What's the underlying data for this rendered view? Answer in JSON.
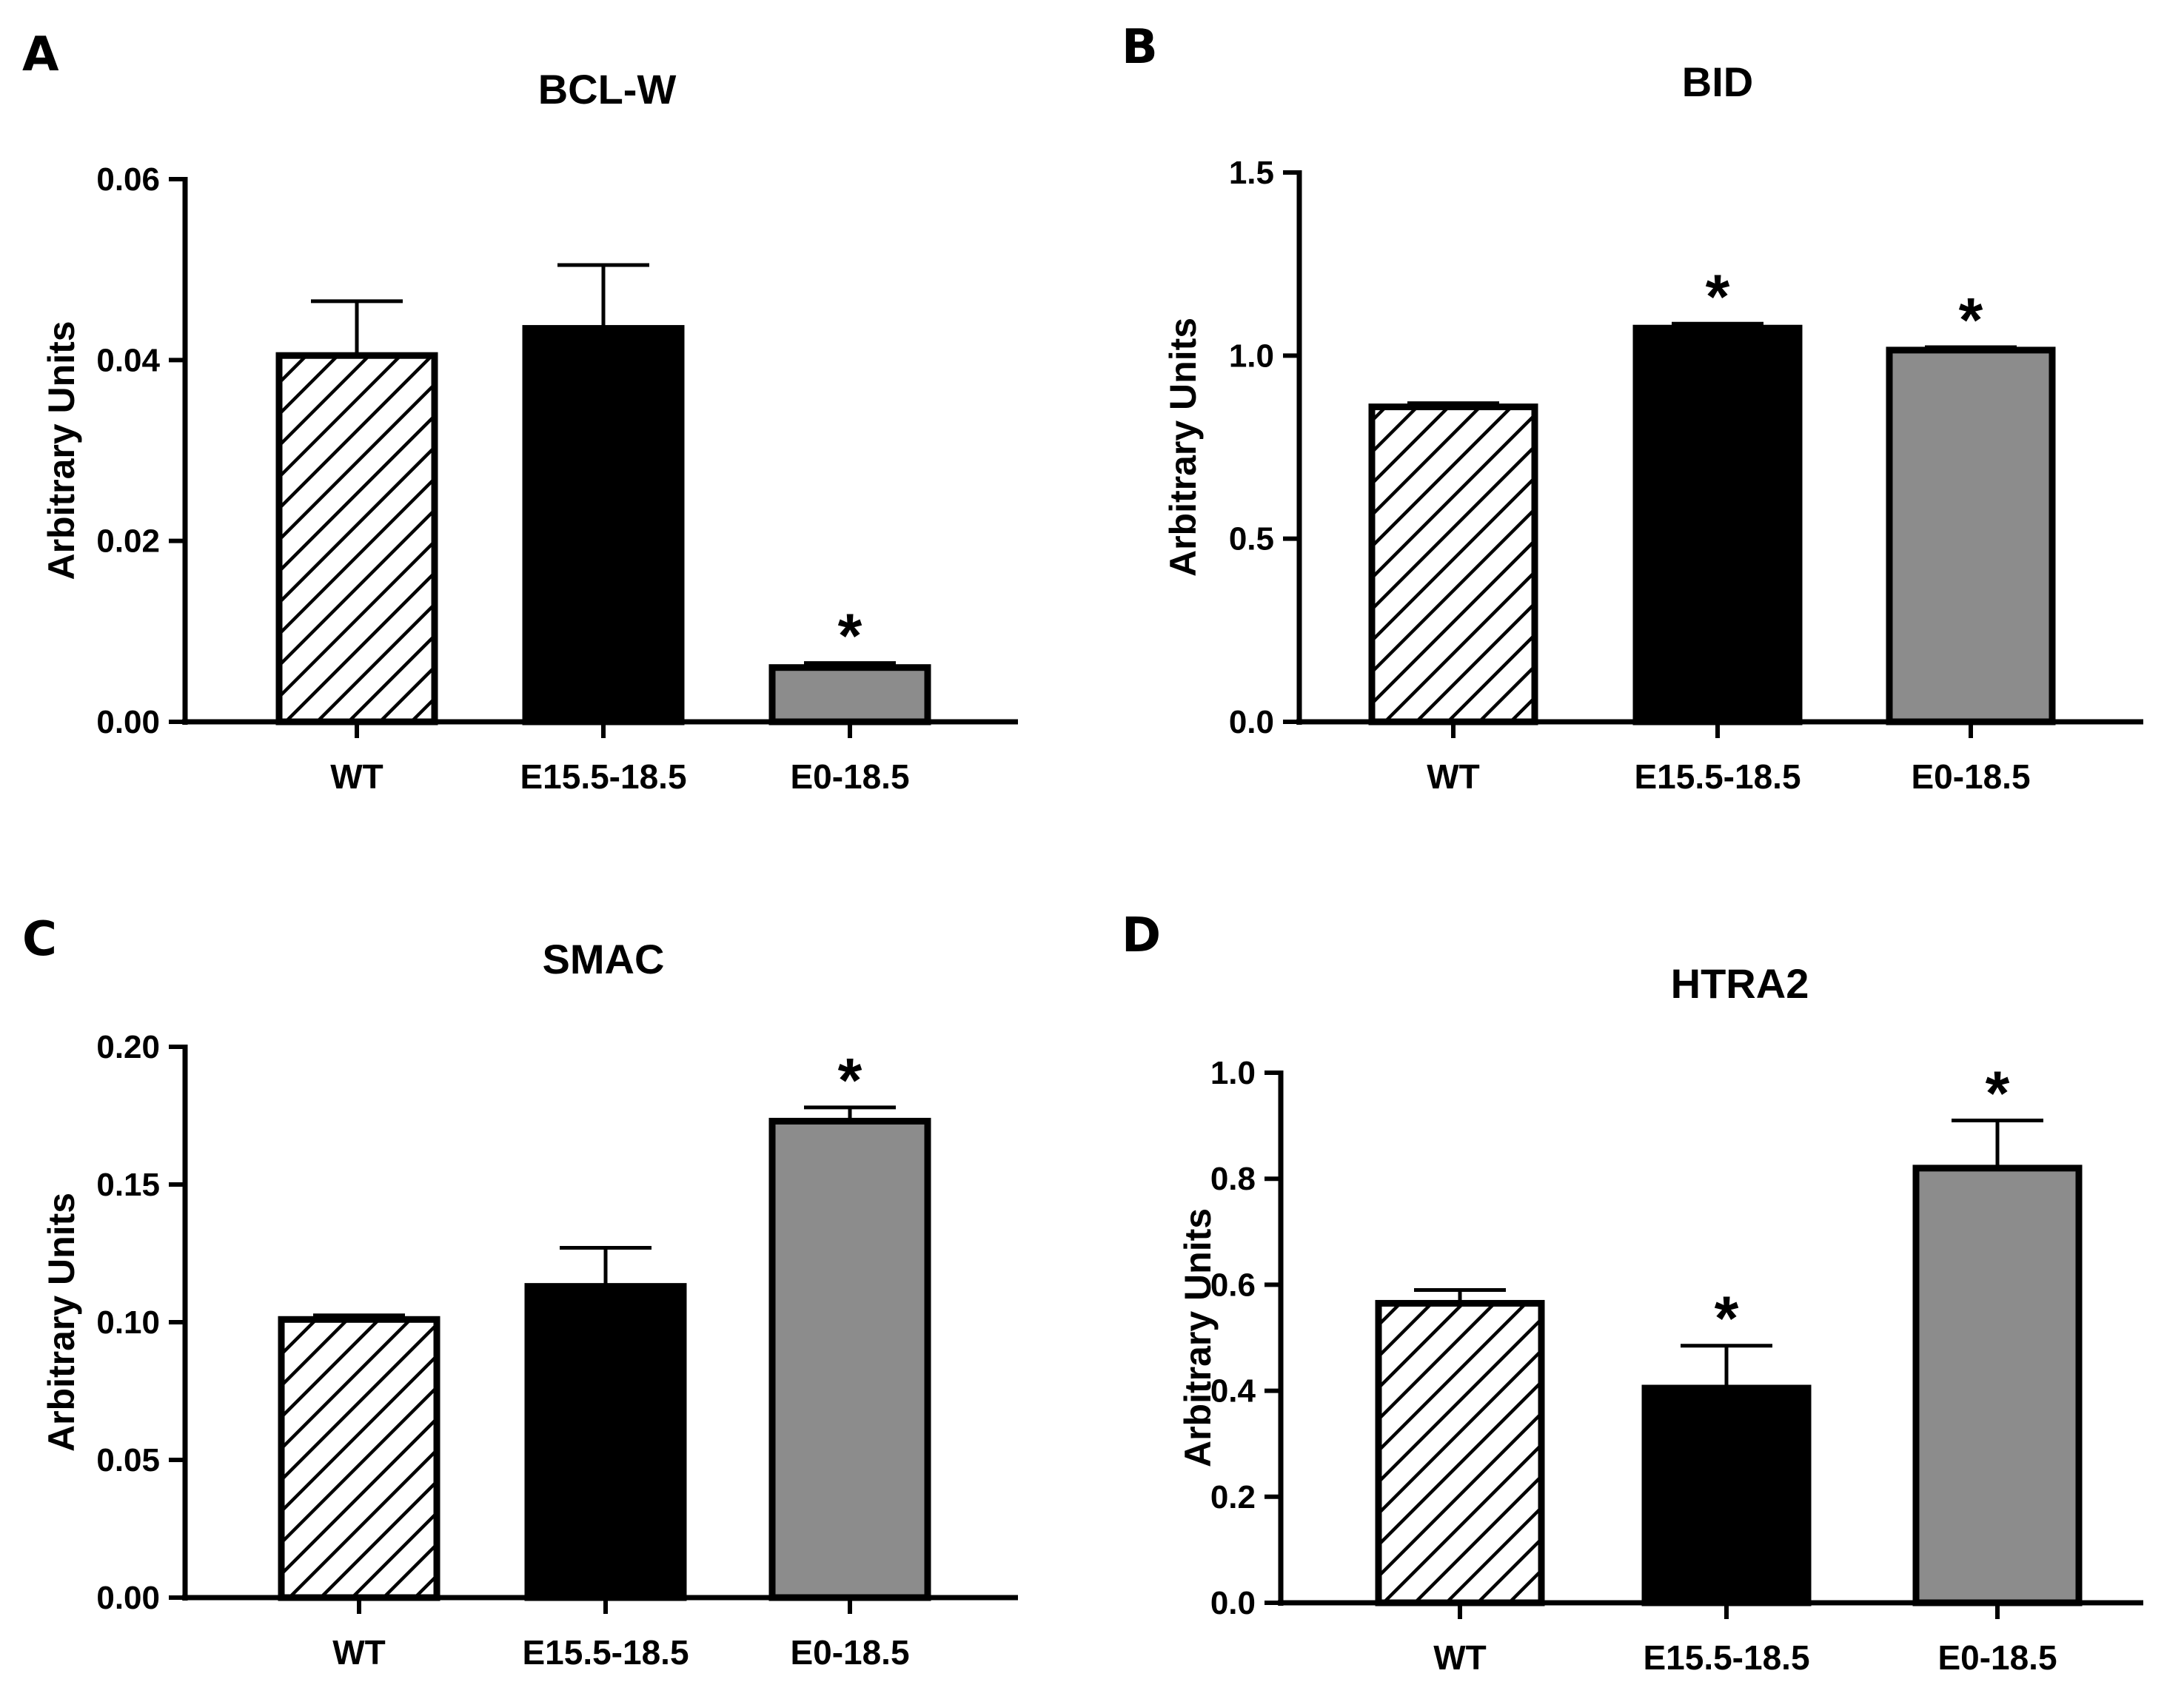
{
  "colors": {
    "e15": "#000000",
    "e0": "#8c8c8c",
    "hatch": "#000000",
    "background": "#ffffff"
  },
  "chart_data": [
    {
      "panel": "A",
      "type": "bar",
      "title": "BCL-W",
      "ylabel": "Arbitrary Units",
      "categories": [
        "WT",
        "E15.5-18.5",
        "E0-18.5"
      ],
      "values": [
        0.0405,
        0.0435,
        0.006
      ],
      "errors": [
        0.006,
        0.007,
        0.0005
      ],
      "significance": [
        "",
        "",
        "*"
      ],
      "fills": [
        "hatch",
        "black",
        "gray"
      ],
      "ylim": [
        0,
        0.06
      ],
      "yticks": [
        "0.00",
        "0.02",
        "0.04",
        "0.06"
      ]
    },
    {
      "panel": "B",
      "type": "bar",
      "title": "BID",
      "ylabel": "Arbitrary Units",
      "categories": [
        "WT",
        "E15.5-18.5",
        "E0-18.5"
      ],
      "values": [
        0.86,
        1.075,
        1.015
      ],
      "errors": [
        0.01,
        0.012,
        0.008
      ],
      "significance": [
        "",
        "*",
        "*"
      ],
      "fills": [
        "hatch",
        "black",
        "gray"
      ],
      "ylim": [
        0,
        1.5
      ],
      "yticks": [
        "0.0",
        "0.5",
        "1.0",
        "1.5"
      ]
    },
    {
      "panel": "C",
      "type": "bar",
      "title": "SMAC",
      "ylabel": "Arbitrary Units",
      "categories": [
        "WT",
        "E15.5-18.5",
        "E0-18.5"
      ],
      "values": [
        0.101,
        0.113,
        0.173
      ],
      "errors": [
        0.0015,
        0.014,
        0.005
      ],
      "significance": [
        "",
        "",
        "*"
      ],
      "fills": [
        "hatch",
        "black",
        "gray"
      ],
      "ylim": [
        0,
        0.2
      ],
      "yticks": [
        "0.00",
        "0.05",
        "0.10",
        "0.15",
        "0.20"
      ]
    },
    {
      "panel": "D",
      "type": "bar",
      "title": "HTRA2",
      "ylabel": "Arbitrary Units",
      "categories": [
        "WT",
        "E15.5-18.5",
        "E0-18.5"
      ],
      "values": [
        0.565,
        0.405,
        0.82
      ],
      "errors": [
        0.025,
        0.08,
        0.09
      ],
      "significance": [
        "",
        "*",
        "*"
      ],
      "fills": [
        "hatch",
        "black",
        "gray"
      ],
      "ylim": [
        0,
        1.0
      ],
      "yticks": [
        "0.0",
        "0.2",
        "0.4",
        "0.6",
        "0.8",
        "1.0"
      ]
    }
  ]
}
